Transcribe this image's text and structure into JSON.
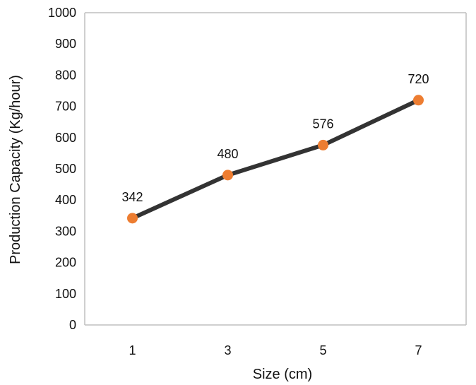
{
  "chart_data": {
    "type": "line",
    "title": "",
    "xlabel": "Size (cm)",
    "ylabel": "Production Capacity  (Kg/hour)",
    "x": [
      "1",
      "3",
      "5",
      "7"
    ],
    "series": [
      {
        "values": [
          342,
          480,
          576,
          720
        ]
      }
    ],
    "data_labels": [
      "342",
      "480",
      "576",
      "720"
    ],
    "ylim": [
      0,
      1000
    ],
    "y_ticks": [
      "0",
      "100",
      "200",
      "300",
      "400",
      "500",
      "600",
      "700",
      "800",
      "900",
      "1000"
    ],
    "grid": false,
    "legend": "none",
    "colors": {
      "line": "#333333",
      "marker": "#ED7D31",
      "axis": "#BFBFBF"
    }
  }
}
